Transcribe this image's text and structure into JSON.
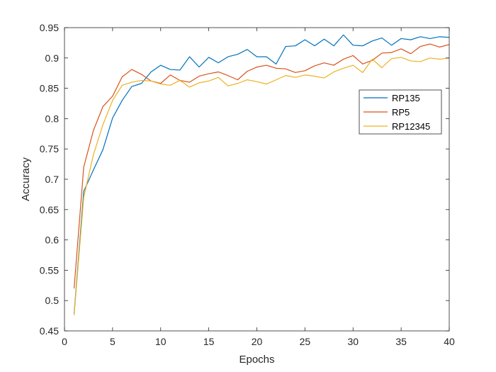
{
  "chart_data": {
    "type": "line",
    "xlabel": "Epochs",
    "ylabel": "Accuracy",
    "xlim": [
      0,
      40
    ],
    "ylim": [
      0.45,
      0.95
    ],
    "x_ticks": [
      "0",
      "5",
      "10",
      "15",
      "20",
      "25",
      "30",
      "35",
      "40"
    ],
    "y_ticks": [
      "0.45",
      "0.5",
      "0.55",
      "0.6",
      "0.65",
      "0.7",
      "0.75",
      "0.8",
      "0.85",
      "0.9",
      "0.95"
    ],
    "grid": false,
    "legend_position": "right",
    "x": [
      1,
      2,
      3,
      4,
      5,
      6,
      7,
      8,
      9,
      10,
      11,
      12,
      13,
      14,
      15,
      16,
      17,
      18,
      19,
      20,
      21,
      22,
      23,
      24,
      25,
      26,
      27,
      28,
      29,
      30,
      31,
      32,
      33,
      34,
      35,
      36,
      37,
      38,
      39,
      40
    ],
    "series": [
      {
        "name": "RP135",
        "color": "#0072BD",
        "values": [
          0.478,
          0.68,
          0.715,
          0.749,
          0.801,
          0.83,
          0.853,
          0.858,
          0.877,
          0.888,
          0.881,
          0.88,
          0.902,
          0.885,
          0.901,
          0.892,
          0.902,
          0.906,
          0.914,
          0.902,
          0.902,
          0.89,
          0.919,
          0.92,
          0.93,
          0.92,
          0.931,
          0.92,
          0.938,
          0.921,
          0.92,
          0.928,
          0.933,
          0.921,
          0.932,
          0.93,
          0.935,
          0.932,
          0.935,
          0.934
        ]
      },
      {
        "name": "RP5",
        "color": "#D95319",
        "values": [
          0.52,
          0.72,
          0.78,
          0.82,
          0.837,
          0.869,
          0.881,
          0.873,
          0.862,
          0.858,
          0.872,
          0.863,
          0.86,
          0.87,
          0.874,
          0.877,
          0.871,
          0.864,
          0.878,
          0.885,
          0.888,
          0.883,
          0.882,
          0.876,
          0.879,
          0.887,
          0.892,
          0.888,
          0.898,
          0.904,
          0.89,
          0.896,
          0.908,
          0.909,
          0.915,
          0.907,
          0.919,
          0.923,
          0.918,
          0.922
        ]
      },
      {
        "name": "RP12345",
        "color": "#EDB120",
        "values": [
          0.476,
          0.67,
          0.74,
          0.79,
          0.83,
          0.855,
          0.86,
          0.863,
          0.862,
          0.857,
          0.855,
          0.863,
          0.852,
          0.859,
          0.862,
          0.868,
          0.854,
          0.858,
          0.864,
          0.861,
          0.857,
          0.864,
          0.871,
          0.868,
          0.872,
          0.87,
          0.867,
          0.877,
          0.883,
          0.888,
          0.876,
          0.898,
          0.884,
          0.899,
          0.901,
          0.895,
          0.894,
          0.9,
          0.898,
          0.9
        ]
      }
    ]
  }
}
